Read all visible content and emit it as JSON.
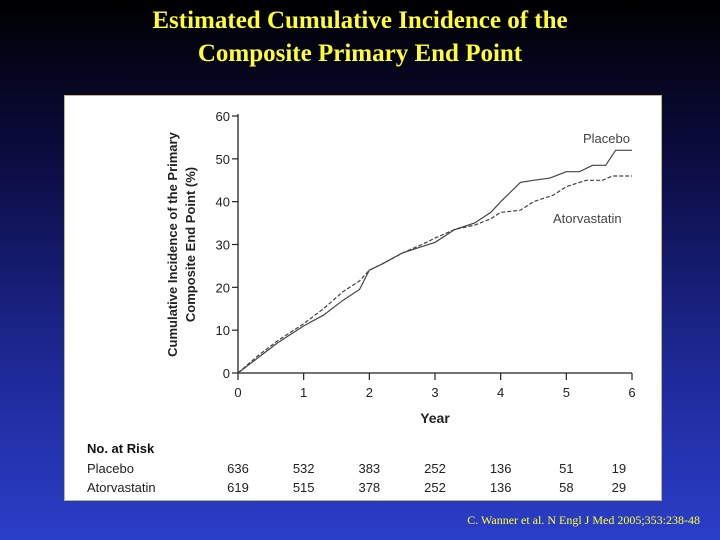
{
  "slide": {
    "title_line1": "Estimated Cumulative Incidence of the",
    "title_line2": "Composite Primary End Point",
    "citation": "C. Wanner et al. N Engl J Med 2005;353:238-48"
  },
  "colors": {
    "title": "#ffff33",
    "series": "#444444",
    "axis": "#222222"
  },
  "chart_data": {
    "type": "line",
    "xlabel": "Year",
    "ylabel_line1": "Cumulative Incidence of the Primary",
    "ylabel_line2": "Composite End Point (%)",
    "xlim": [
      0,
      6
    ],
    "ylim": [
      0,
      60
    ],
    "xticks": [
      0,
      1,
      2,
      3,
      4,
      5,
      6
    ],
    "yticks": [
      0,
      10,
      20,
      30,
      40,
      50,
      60
    ],
    "grid": false,
    "series": [
      {
        "name": "Placebo",
        "style": "solid",
        "x": [
          0,
          0.3,
          0.6,
          1.0,
          1.3,
          1.6,
          1.85,
          2.0,
          2.2,
          2.5,
          2.8,
          3.0,
          3.3,
          3.6,
          3.85,
          4.0,
          4.3,
          4.5,
          4.75,
          5.0,
          5.2,
          5.4,
          5.6,
          5.75,
          6.0
        ],
        "y": [
          0,
          3.5,
          7,
          11,
          13.5,
          17,
          19.5,
          24,
          25.5,
          28,
          29.5,
          30.5,
          33.5,
          35,
          37.5,
          40,
          44.5,
          45,
          45.5,
          47,
          47,
          48.5,
          48.5,
          52,
          52
        ]
      },
      {
        "name": "Atorvastatin",
        "style": "dashed",
        "x": [
          0,
          0.3,
          0.6,
          1.0,
          1.3,
          1.6,
          1.85,
          2.0,
          2.2,
          2.5,
          2.8,
          3.0,
          3.3,
          3.6,
          3.85,
          4.0,
          4.3,
          4.5,
          4.8,
          5.0,
          5.3,
          5.55,
          5.7,
          6.0
        ],
        "y": [
          0,
          4,
          7.5,
          11.5,
          15,
          19,
          21.5,
          24,
          25.5,
          28,
          30,
          31.5,
          33.5,
          34.5,
          36,
          37.5,
          38,
          40,
          41.5,
          43.5,
          45,
          45,
          46,
          46
        ]
      }
    ],
    "series_labels": [
      "Placebo",
      "Atorvastatin"
    ],
    "risk_table": {
      "header": "No. at Risk",
      "times": [
        0,
        1,
        2,
        3,
        4,
        5,
        5.8
      ],
      "rows": [
        {
          "label": "Placebo",
          "values": [
            "636",
            "532",
            "383",
            "252",
            "136",
            "51",
            "19"
          ]
        },
        {
          "label": "Atorvastatin",
          "values": [
            "619",
            "515",
            "378",
            "252",
            "136",
            "58",
            "29"
          ]
        }
      ]
    }
  }
}
